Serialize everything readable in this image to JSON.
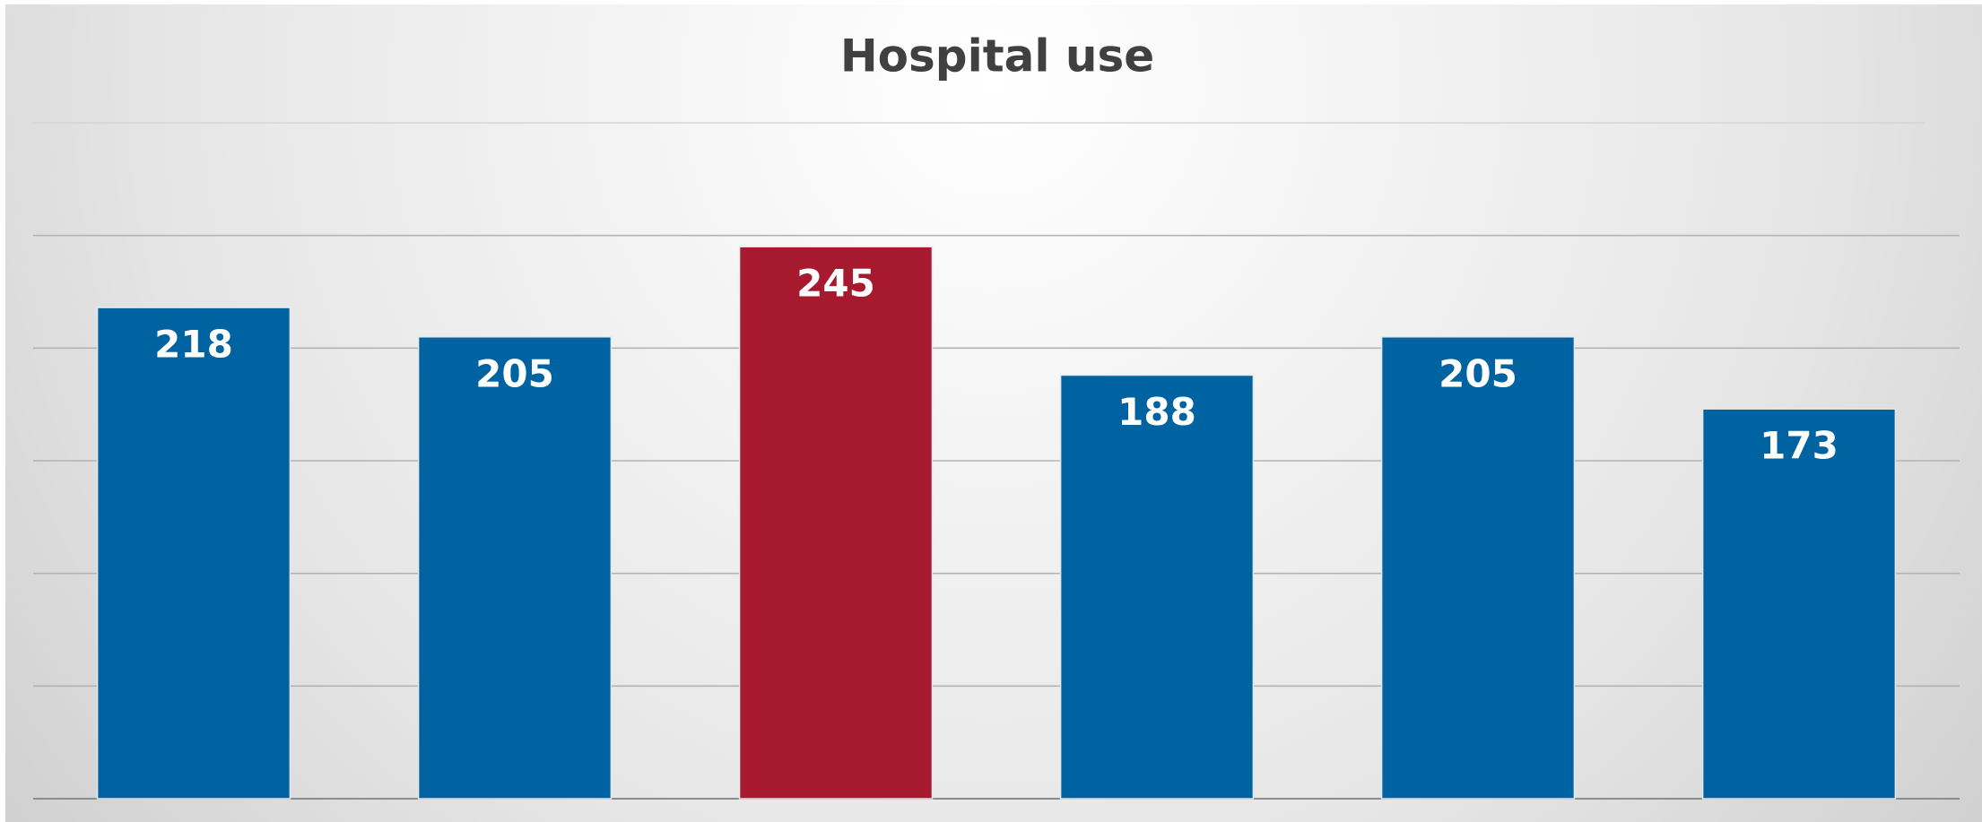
{
  "chart_data": {
    "type": "bar",
    "title": "Hospital use",
    "categories": [
      null,
      null,
      null,
      null,
      null,
      null
    ],
    "values": [
      218,
      205,
      245,
      188,
      205,
      173
    ],
    "colors": [
      "#0063a1",
      "#0063a1",
      "#a6192e",
      "#0063a1",
      "#0063a1",
      "#0063a1"
    ],
    "ylim": [
      0,
      300
    ],
    "yticks": [
      0,
      50,
      100,
      150,
      200,
      250,
      300
    ],
    "grid": true
  }
}
